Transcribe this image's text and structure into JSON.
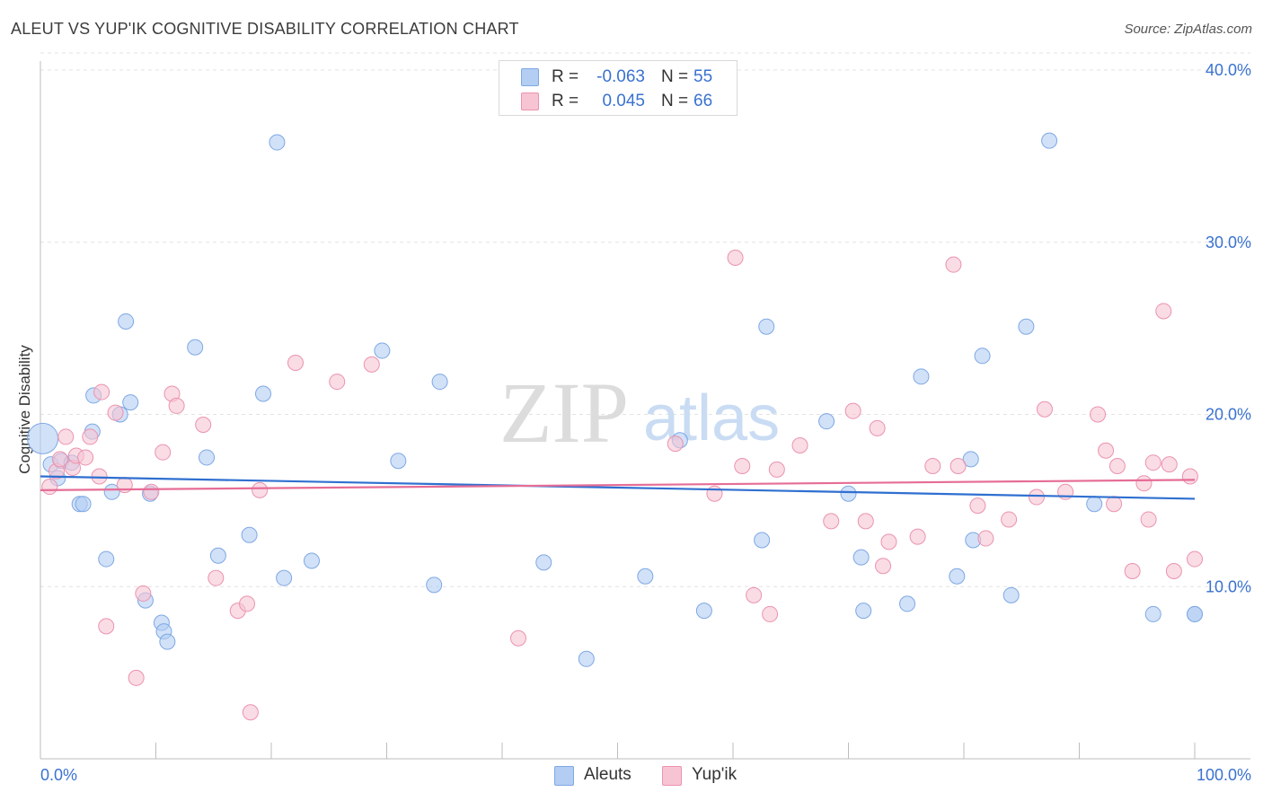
{
  "header": {
    "title": "ALEUT VS YUP'IK COGNITIVE DISABILITY CORRELATION CHART",
    "source": "Source: ZipAtlas.com"
  },
  "watermark": {
    "zip": "ZIP",
    "atlas": "atlas"
  },
  "legend": {
    "r_label": "R =",
    "n_label": "N =",
    "rows": [
      {
        "name": "Aleuts",
        "r": "-0.063",
        "n": "55"
      },
      {
        "name": "Yup'ik",
        "r": "0.045",
        "n": "66"
      }
    ]
  },
  "colors": {
    "aleut_fill": "#b3cdf3",
    "aleut_stroke": "#7ea8e4",
    "aleut_line": "#2f6fd0",
    "yupik_fill": "#f7c4d3",
    "yupik_stroke": "#eb93ae",
    "yupik_line": "#e66d96",
    "tick_label": "#3a72d0",
    "grid": "#e3e3e3"
  },
  "chart_data": {
    "type": "scatter",
    "title": "ALEUT VS YUP'IK COGNITIVE DISABILITY CORRELATION CHART",
    "xlabel": "",
    "ylabel": "Cognitive Disability",
    "xlim": [
      0,
      100
    ],
    "ylim": [
      0,
      40
    ],
    "x_tick_labels": [
      "0.0%",
      "100.0%"
    ],
    "y_ticks": [
      10,
      20,
      30,
      40
    ],
    "y_tick_labels": [
      "10.0%",
      "20.0%",
      "30.0%",
      "40.0%"
    ],
    "grid": "horizontal dashed",
    "legend_position": "top-center",
    "series": [
      {
        "name": "Aleuts",
        "r": -0.063,
        "n": 55,
        "trend": {
          "x": [
            0,
            100
          ],
          "y": [
            16.4,
            15.1
          ]
        },
        "points": [
          [
            0.2,
            18.6
          ],
          [
            0.9,
            17.1
          ],
          [
            1.5,
            16.3
          ],
          [
            1.8,
            17.3
          ],
          [
            2.7,
            17.2
          ],
          [
            3.4,
            14.8
          ],
          [
            3.7,
            14.8
          ],
          [
            4.5,
            19.0
          ],
          [
            4.6,
            21.1
          ],
          [
            5.7,
            11.6
          ],
          [
            6.2,
            15.5
          ],
          [
            6.9,
            20.0
          ],
          [
            7.4,
            25.4
          ],
          [
            7.8,
            20.7
          ],
          [
            9.1,
            9.2
          ],
          [
            9.5,
            15.4
          ],
          [
            10.5,
            7.9
          ],
          [
            10.7,
            7.4
          ],
          [
            11.0,
            6.8
          ],
          [
            13.4,
            23.9
          ],
          [
            14.4,
            17.5
          ],
          [
            15.4,
            11.8
          ],
          [
            18.1,
            13.0
          ],
          [
            19.3,
            21.2
          ],
          [
            20.5,
            35.8
          ],
          [
            21.1,
            10.5
          ],
          [
            23.5,
            11.5
          ],
          [
            29.6,
            23.7
          ],
          [
            31.0,
            17.3
          ],
          [
            34.1,
            10.1
          ],
          [
            34.6,
            21.9
          ],
          [
            43.6,
            11.4
          ],
          [
            47.3,
            5.8
          ],
          [
            52.4,
            10.6
          ],
          [
            55.4,
            18.5
          ],
          [
            57.5,
            8.6
          ],
          [
            62.5,
            12.7
          ],
          [
            62.9,
            25.1
          ],
          [
            68.1,
            19.6
          ],
          [
            70.0,
            15.4
          ],
          [
            71.1,
            11.7
          ],
          [
            71.3,
            8.6
          ],
          [
            75.1,
            9.0
          ],
          [
            76.3,
            22.2
          ],
          [
            79.4,
            10.6
          ],
          [
            80.6,
            17.4
          ],
          [
            80.8,
            12.7
          ],
          [
            81.6,
            23.4
          ],
          [
            84.1,
            9.5
          ],
          [
            85.4,
            25.1
          ],
          [
            87.4,
            35.9
          ],
          [
            91.3,
            14.8
          ],
          [
            96.4,
            8.4
          ],
          [
            100.0,
            8.4
          ],
          [
            100.0,
            8.4
          ]
        ]
      },
      {
        "name": "Yup'ik",
        "r": 0.045,
        "n": 66,
        "trend": {
          "x": [
            0,
            100
          ],
          "y": [
            15.6,
            16.2
          ]
        },
        "points": [
          [
            0.8,
            15.8
          ],
          [
            1.4,
            16.7
          ],
          [
            1.7,
            17.4
          ],
          [
            2.2,
            18.7
          ],
          [
            2.8,
            16.9
          ],
          [
            3.1,
            17.6
          ],
          [
            3.9,
            17.5
          ],
          [
            4.3,
            18.7
          ],
          [
            5.1,
            16.4
          ],
          [
            5.3,
            21.3
          ],
          [
            5.7,
            7.7
          ],
          [
            6.5,
            20.1
          ],
          [
            7.3,
            15.9
          ],
          [
            8.3,
            4.7
          ],
          [
            8.9,
            9.6
          ],
          [
            9.6,
            15.5
          ],
          [
            10.6,
            17.8
          ],
          [
            11.4,
            21.2
          ],
          [
            11.8,
            20.5
          ],
          [
            14.1,
            19.4
          ],
          [
            15.2,
            10.5
          ],
          [
            17.1,
            8.6
          ],
          [
            17.9,
            9.0
          ],
          [
            18.2,
            2.7
          ],
          [
            19.0,
            15.6
          ],
          [
            22.1,
            23.0
          ],
          [
            25.7,
            21.9
          ],
          [
            28.7,
            22.9
          ],
          [
            41.4,
            7.0
          ],
          [
            55.0,
            18.3
          ],
          [
            58.4,
            15.4
          ],
          [
            60.2,
            29.1
          ],
          [
            60.8,
            17.0
          ],
          [
            61.8,
            9.5
          ],
          [
            63.2,
            8.4
          ],
          [
            63.8,
            16.8
          ],
          [
            65.8,
            18.2
          ],
          [
            68.5,
            13.8
          ],
          [
            70.4,
            20.2
          ],
          [
            71.5,
            13.8
          ],
          [
            72.5,
            19.2
          ],
          [
            73.0,
            11.2
          ],
          [
            73.5,
            12.6
          ],
          [
            76.0,
            12.9
          ],
          [
            77.3,
            17.0
          ],
          [
            79.1,
            28.7
          ],
          [
            79.5,
            17.0
          ],
          [
            81.2,
            14.7
          ],
          [
            81.9,
            12.8
          ],
          [
            83.9,
            13.9
          ],
          [
            86.3,
            15.2
          ],
          [
            87.0,
            20.3
          ],
          [
            88.8,
            15.5
          ],
          [
            91.6,
            20.0
          ],
          [
            92.3,
            17.9
          ],
          [
            93.0,
            14.8
          ],
          [
            93.3,
            17.0
          ],
          [
            94.6,
            10.9
          ],
          [
            95.6,
            16.0
          ],
          [
            96.0,
            13.9
          ],
          [
            96.4,
            17.2
          ],
          [
            97.3,
            26.0
          ],
          [
            97.8,
            17.1
          ],
          [
            98.2,
            10.9
          ],
          [
            99.6,
            16.4
          ],
          [
            100.0,
            11.6
          ]
        ]
      }
    ]
  }
}
